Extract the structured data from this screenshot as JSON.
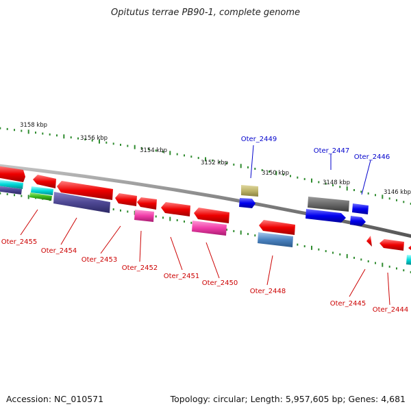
{
  "title": "Opitutus terrae PB90-1, complete genome",
  "footer": {
    "accession": "Accession: NC_010571",
    "summary": "Topology: circular; Length: 5,957,605 bp; Genes: 4,681"
  },
  "colors": {
    "label_forward": "#0000cc",
    "label_reverse": "#cc0000",
    "backbone": "#888888",
    "tick": "#2e8b2e"
  },
  "ruler_labels": [
    {
      "name": "kbp-3158",
      "text": "3158 kbp"
    },
    {
      "name": "kbp-3156",
      "text": "3156 kbp"
    },
    {
      "name": "kbp-3154",
      "text": "3154 kbp"
    },
    {
      "name": "kbp-3152",
      "text": "3152 kbp"
    },
    {
      "name": "kbp-3150",
      "text": "3150 kbp"
    },
    {
      "name": "kbp-3148",
      "text": "3148 kbp"
    },
    {
      "name": "kbp-3146",
      "text": "3146 kbp"
    }
  ],
  "gene_labels": [
    {
      "name": "label-oter-2449",
      "text": "Oter_2449",
      "strand": "forward"
    },
    {
      "name": "label-oter-2447",
      "text": "Oter_2447",
      "strand": "forward"
    },
    {
      "name": "label-oter-2446",
      "text": "Oter_2446",
      "strand": "forward"
    },
    {
      "name": "label-oter-2455",
      "text": "Oter_2455",
      "strand": "reverse"
    },
    {
      "name": "label-oter-2454",
      "text": "Oter_2454",
      "strand": "reverse"
    },
    {
      "name": "label-oter-2453",
      "text": "Oter_2453",
      "strand": "reverse"
    },
    {
      "name": "label-oter-2452",
      "text": "Oter_2452",
      "strand": "reverse"
    },
    {
      "name": "label-oter-2451",
      "text": "Oter_2451",
      "strand": "reverse"
    },
    {
      "name": "label-oter-2450",
      "text": "Oter_2450",
      "strand": "reverse"
    },
    {
      "name": "label-oter-2448",
      "text": "Oter_2448",
      "strand": "reverse"
    },
    {
      "name": "label-oter-2445",
      "text": "Oter_2445",
      "strand": "reverse"
    },
    {
      "name": "label-oter-2444",
      "text": "Oter_2444",
      "strand": "reverse"
    }
  ]
}
